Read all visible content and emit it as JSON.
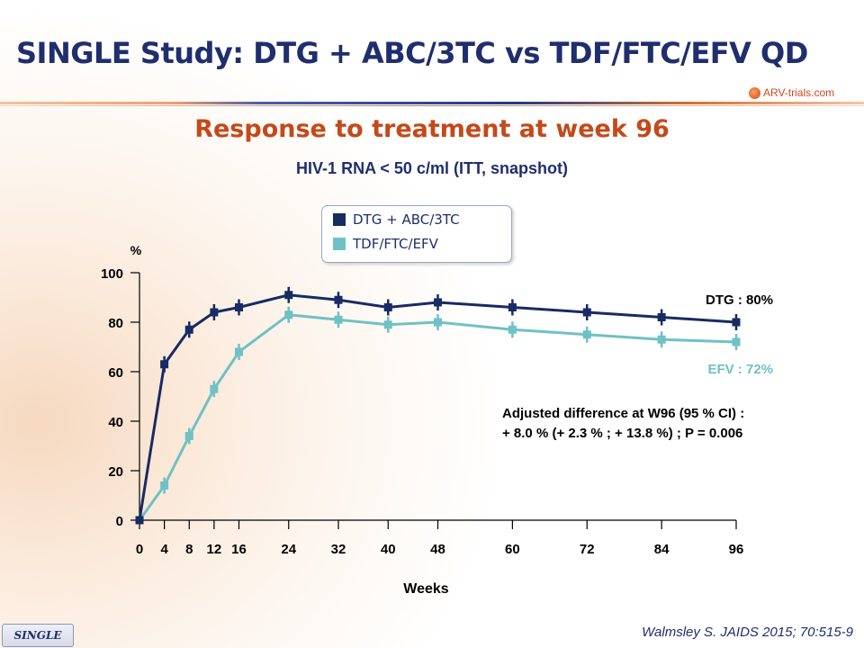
{
  "slide": {
    "title": "SINGLE Study: DTG + ABC/3TC vs TDF/FTC/EFV QD",
    "logo_text": "ARV-trials.com",
    "subtitle": "Response to treatment at week 96",
    "subsubtitle": "HIV-1 RNA < 50 c/ml (ITT, snapshot)",
    "footer_tag": "SINGLE",
    "citation": "Walmsley S. JAIDS 2015; 70:515-9"
  },
  "annotation": {
    "line1": "Adjusted difference at W96 (95 % CI) :",
    "line2": "+ 8.0 % (+ 2.3 % ; + 13.8 %) ; P = 0.006"
  },
  "colors": {
    "dtg": "#172b64",
    "efv": "#6fc1c4",
    "title": "#1f2e6e",
    "subtitle": "#c4491a"
  },
  "chart_data": {
    "type": "line",
    "xlabel": "Weeks",
    "ylabel": "%",
    "x": [
      0,
      4,
      8,
      12,
      16,
      24,
      32,
      40,
      48,
      60,
      72,
      84,
      96
    ],
    "xlim": [
      0,
      96
    ],
    "ylim": [
      0,
      100
    ],
    "yticks": [
      0,
      20,
      40,
      60,
      80,
      100
    ],
    "grid": false,
    "legend_position": "top-center",
    "series": [
      {
        "name": "DTG + ABC/3TC",
        "end_label": "DTG : 80%",
        "color": "#172b64",
        "values": [
          0,
          63,
          77,
          84,
          86,
          91,
          89,
          86,
          88,
          86,
          84,
          82,
          80
        ]
      },
      {
        "name": "TDF/FTC/EFV",
        "end_label": "EFV : 72%",
        "color": "#6fc1c4",
        "values": [
          0,
          14,
          34,
          53,
          68,
          83,
          81,
          79,
          80,
          77,
          75,
          73,
          72
        ]
      }
    ]
  }
}
